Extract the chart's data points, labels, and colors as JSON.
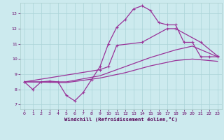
{
  "background_color": "#cceaee",
  "line_color": "#993399",
  "grid_color": "#aad4d8",
  "xlabel": "Windchill (Refroidissement éolien,°C)",
  "xlim": [
    -0.5,
    23.5
  ],
  "ylim": [
    6.7,
    13.7
  ],
  "xticks": [
    0,
    1,
    2,
    3,
    4,
    5,
    6,
    7,
    8,
    9,
    10,
    11,
    12,
    13,
    14,
    15,
    16,
    17,
    18,
    19,
    20,
    21,
    22,
    23
  ],
  "yticks": [
    7,
    8,
    9,
    10,
    11,
    12,
    13
  ],
  "jagged_x": [
    0,
    1,
    2,
    3,
    4,
    5,
    6,
    7,
    8,
    9,
    10,
    11,
    12,
    13,
    14,
    15,
    16,
    17,
    18,
    19,
    20,
    21,
    22,
    23
  ],
  "jagged_y": [
    8.5,
    8.0,
    8.5,
    8.55,
    8.5,
    7.6,
    7.25,
    7.8,
    8.65,
    9.5,
    11.0,
    12.1,
    12.6,
    13.3,
    13.5,
    13.2,
    12.4,
    12.25,
    12.25,
    11.1,
    11.1,
    10.15,
    10.15,
    10.15
  ],
  "smooth_upper_x": [
    0,
    9,
    10,
    11,
    14,
    17,
    18,
    21,
    23
  ],
  "smooth_upper_y": [
    8.5,
    9.3,
    9.5,
    10.9,
    11.1,
    12.0,
    12.0,
    11.1,
    10.2
  ],
  "smooth_mid_x": [
    0,
    5,
    9,
    12,
    15,
    18,
    20,
    23
  ],
  "smooth_mid_y": [
    8.5,
    8.5,
    8.9,
    9.5,
    10.1,
    10.6,
    10.85,
    10.15
  ],
  "smooth_low_x": [
    0,
    5,
    9,
    12,
    15,
    18,
    20,
    23
  ],
  "smooth_low_y": [
    8.5,
    8.45,
    8.75,
    9.1,
    9.55,
    9.9,
    10.0,
    9.85
  ]
}
